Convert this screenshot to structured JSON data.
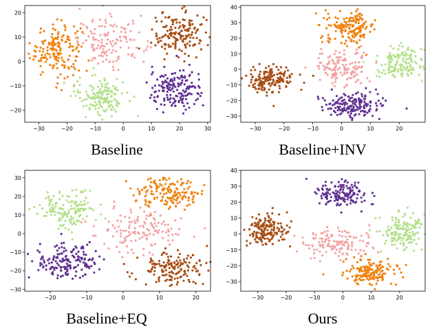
{
  "colors": {
    "orange": "#f0820f",
    "brown": "#a84e14",
    "pink": "#f4a3a3",
    "lightgreen": "#b5e08c",
    "purple": "#613292"
  },
  "chart_data": [
    {
      "type": "scatter",
      "title": "Baseline",
      "xlim": [
        -35,
        31
      ],
      "ylim": [
        -25,
        23
      ],
      "xticks": [
        -30,
        -20,
        -10,
        0,
        10,
        20,
        30
      ],
      "yticks": [
        -20,
        -10,
        0,
        10,
        20
      ],
      "clusters": [
        {
          "color": "orange",
          "cx": -24,
          "cy": 5,
          "sx": 4.5,
          "sy": 5.5,
          "n": 170
        },
        {
          "color": "pink",
          "cx": -4,
          "cy": 8,
          "sx": 6,
          "sy": 5,
          "n": 140
        },
        {
          "color": "brown",
          "cx": 20,
          "cy": 11,
          "sx": 5,
          "sy": 4.5,
          "n": 160
        },
        {
          "color": "lightgreen",
          "cx": -8,
          "cy": -14,
          "sx": 4.5,
          "sy": 4,
          "n": 150
        },
        {
          "color": "purple",
          "cx": 19,
          "cy": -12,
          "sx": 5,
          "sy": 4.5,
          "n": 170
        }
      ]
    },
    {
      "type": "scatter",
      "title": "Baseline+INV",
      "xlim": [
        -35,
        29
      ],
      "ylim": [
        -34,
        41
      ],
      "xticks": [
        -30,
        -20,
        -10,
        0,
        10,
        20
      ],
      "yticks": [
        -30,
        -20,
        -10,
        0,
        10,
        20,
        30,
        40
      ],
      "clusters": [
        {
          "color": "orange",
          "cx": 3,
          "cy": 27,
          "sx": 4.5,
          "sy": 5,
          "n": 160
        },
        {
          "color": "lightgreen",
          "cx": 20,
          "cy": 4,
          "sx": 4,
          "sy": 5.5,
          "n": 150
        },
        {
          "color": "pink",
          "cx": 0,
          "cy": 1,
          "sx": 5,
          "sy": 5.5,
          "n": 140
        },
        {
          "color": "brown",
          "cx": -25,
          "cy": -7,
          "sx": 4,
          "sy": 4.5,
          "n": 160
        },
        {
          "color": "purple",
          "cx": 4,
          "cy": -23,
          "sx": 5,
          "sy": 4,
          "n": 170
        }
      ]
    },
    {
      "type": "scatter",
      "title": "Baseline+EQ",
      "xlim": [
        -27,
        24
      ],
      "ylim": [
        -31,
        34
      ],
      "xticks": [
        -20,
        -10,
        0,
        10,
        20
      ],
      "yticks": [
        -30,
        -20,
        -10,
        0,
        10,
        20,
        30
      ],
      "clusters": [
        {
          "color": "lightgreen",
          "cx": -15,
          "cy": 13,
          "sx": 4,
          "sy": 5,
          "n": 150
        },
        {
          "color": "orange",
          "cx": 13,
          "cy": 22,
          "sx": 4.5,
          "sy": 4.5,
          "n": 160
        },
        {
          "color": "pink",
          "cx": 5,
          "cy": 2,
          "sx": 6,
          "sy": 6,
          "n": 140
        },
        {
          "color": "purple",
          "cx": -16,
          "cy": -15,
          "sx": 4.5,
          "sy": 4.5,
          "n": 170
        },
        {
          "color": "brown",
          "cx": 13,
          "cy": -19,
          "sx": 4.5,
          "sy": 4.5,
          "n": 160
        }
      ]
    },
    {
      "type": "scatter",
      "title": "Ours",
      "xlim": [
        -36,
        29
      ],
      "ylim": [
        -36,
        40
      ],
      "xticks": [
        -30,
        -20,
        -10,
        0,
        10,
        20
      ],
      "yticks": [
        -30,
        -20,
        -10,
        0,
        10,
        20,
        30,
        40
      ],
      "clusters": [
        {
          "color": "purple",
          "cx": 0,
          "cy": 25,
          "sx": 4.5,
          "sy": 4.5,
          "n": 150
        },
        {
          "color": "brown",
          "cx": -27,
          "cy": 3,
          "sx": 4,
          "sy": 5,
          "n": 160
        },
        {
          "color": "pink",
          "cx": -3,
          "cy": -6,
          "sx": 6,
          "sy": 5,
          "n": 140
        },
        {
          "color": "lightgreen",
          "cx": 21,
          "cy": 2,
          "sx": 4,
          "sy": 5.5,
          "n": 150
        },
        {
          "color": "orange",
          "cx": 9,
          "cy": -24,
          "sx": 5,
          "sy": 4,
          "n": 160
        }
      ]
    }
  ]
}
